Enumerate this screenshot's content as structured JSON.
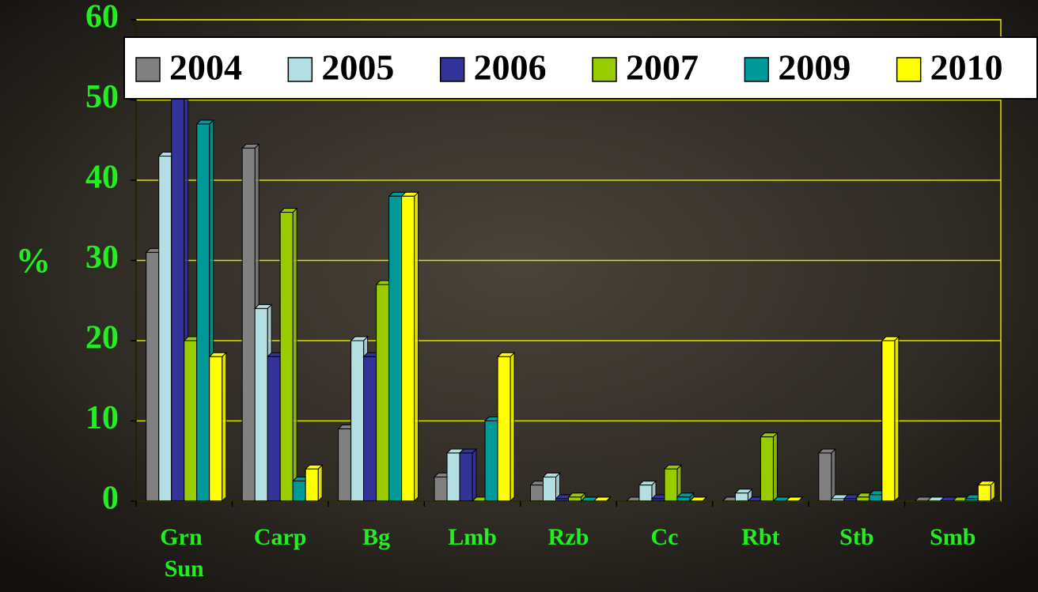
{
  "chart_data": {
    "type": "bar",
    "y_label": "%",
    "categories": [
      "Grn Sun",
      "Carp",
      "Bg",
      "Lmb",
      "Rzb",
      "Cc",
      "Rbt",
      "Stb",
      "Smb"
    ],
    "series": [
      {
        "name": "2004",
        "color": "#808080",
        "values": [
          31,
          44,
          9,
          3,
          2,
          0,
          0,
          6,
          0
        ]
      },
      {
        "name": "2005",
        "color": "#b4dfe2",
        "values": [
          43,
          24,
          20,
          6,
          3,
          2,
          1,
          0.3,
          0
        ]
      },
      {
        "name": "2006",
        "color": "#333399",
        "values": [
          55,
          18,
          18,
          6,
          0.3,
          0.3,
          0,
          0.3,
          0
        ]
      },
      {
        "name": "2007",
        "color": "#99cc00",
        "values": [
          20,
          36,
          27,
          0,
          0.5,
          4,
          8,
          0.5,
          0
        ]
      },
      {
        "name": "2009",
        "color": "#009999",
        "values": [
          47,
          2.5,
          38,
          10,
          0,
          0.5,
          0,
          0.8,
          0.3
        ]
      },
      {
        "name": "2010",
        "color": "#ffff00",
        "values": [
          18,
          4,
          38,
          18,
          0,
          0,
          0,
          20,
          2
        ]
      }
    ],
    "ylim": [
      0,
      60
    ],
    "yticks": [
      0,
      10,
      20,
      30,
      40,
      50,
      60
    ],
    "grid": true,
    "legend": "top"
  }
}
